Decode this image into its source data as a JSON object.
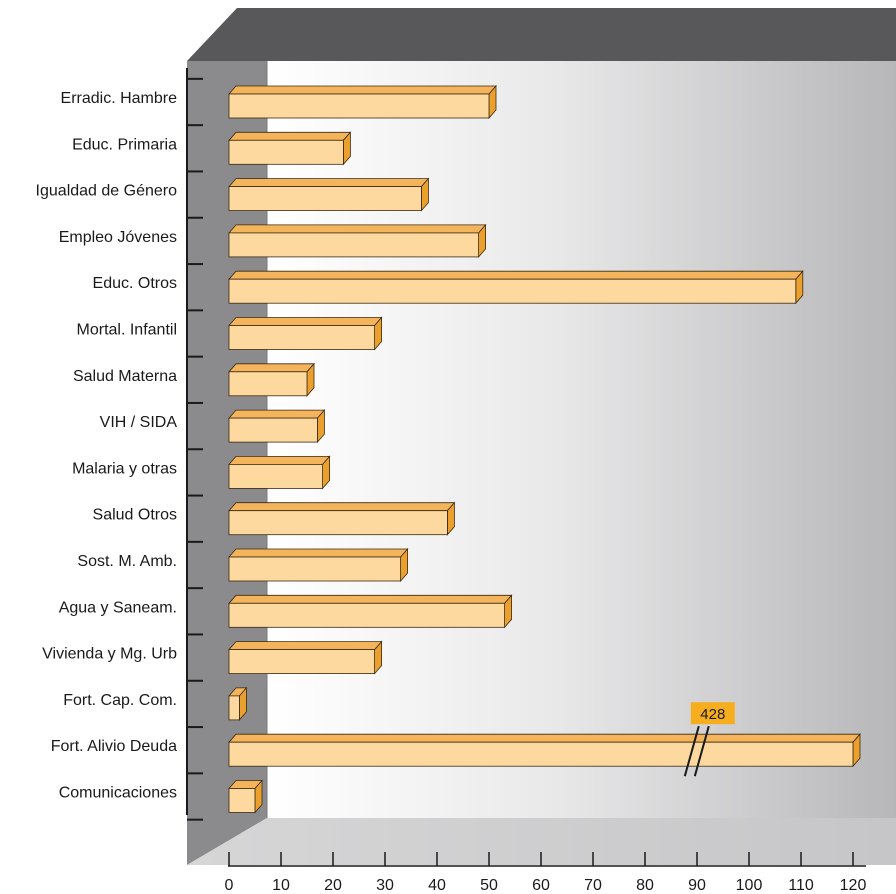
{
  "chart_data": {
    "type": "bar",
    "orientation": "horizontal",
    "style": "3d",
    "categories": [
      "Erradic. Hambre",
      "Educ. Primaria",
      "Igualdad de Género",
      "Empleo Jóvenes",
      "Educ. Otros",
      "Mortal. Infantil",
      "Salud Materna",
      "VIH / SIDA",
      "Malaria y otras",
      "Salud Otros",
      "Sost. M. Amb.",
      "Agua y Saneam.",
      "Vivienda y Mg. Urb",
      "Fort. Cap. Com.",
      "Fort. Alivio Deuda",
      "Comunicaciones"
    ],
    "values": [
      50,
      22,
      37,
      48,
      109,
      28,
      15,
      17,
      18,
      42,
      33,
      53,
      28,
      2,
      428,
      5
    ],
    "xlim": [
      0,
      120
    ],
    "xticks": [
      "0",
      "10",
      "20",
      "30",
      "40",
      "50",
      "60",
      "70",
      "80",
      "90",
      "100",
      "110",
      "120"
    ],
    "axis_break": {
      "category": "Fort. Alivio Deuda",
      "label": "428"
    },
    "colors": {
      "bar_front": "#fdd9a0",
      "bar_top": "#f4b45c",
      "bar_side": "#eba02e",
      "wall_top": "#58585a",
      "wall_left": "#8a8a8c",
      "label_badge": "#f7ae1e"
    }
  }
}
